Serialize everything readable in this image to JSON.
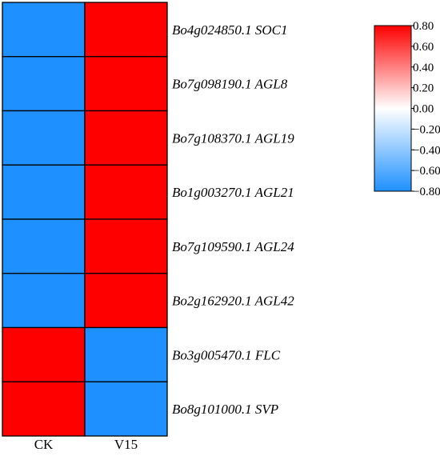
{
  "chart_data": {
    "type": "heatmap",
    "columns": [
      "CK",
      "V15"
    ],
    "rows": [
      "Bo4g024850.1 SOC1",
      "Bo7g098190.1 AGL8",
      "Bo7g108370.1 AGL19",
      "Bo1g003270.1 AGL21",
      "Bo7g109590.1 AGL24",
      "Bo2g162920.1 AGL42",
      "Bo3g005470.1 FLC",
      "Bo8g101000.1 SVP"
    ],
    "values": [
      [
        -0.8,
        0.8
      ],
      [
        -0.8,
        0.8
      ],
      [
        -0.8,
        0.8
      ],
      [
        -0.8,
        0.8
      ],
      [
        -0.8,
        0.8
      ],
      [
        -0.8,
        0.8
      ],
      [
        0.8,
        -0.8
      ],
      [
        0.8,
        -0.8
      ]
    ],
    "colorbar": {
      "min": -0.8,
      "max": 0.8,
      "ticks": [
        "0.80",
        "0.60",
        "0.40",
        "0.20",
        "0.00",
        "-0.20",
        "-0.40",
        "-0.60",
        "-0.80"
      ],
      "colors": {
        "low": "#1e90ff",
        "mid": "#ffffff",
        "high": "#ff0000"
      }
    }
  }
}
